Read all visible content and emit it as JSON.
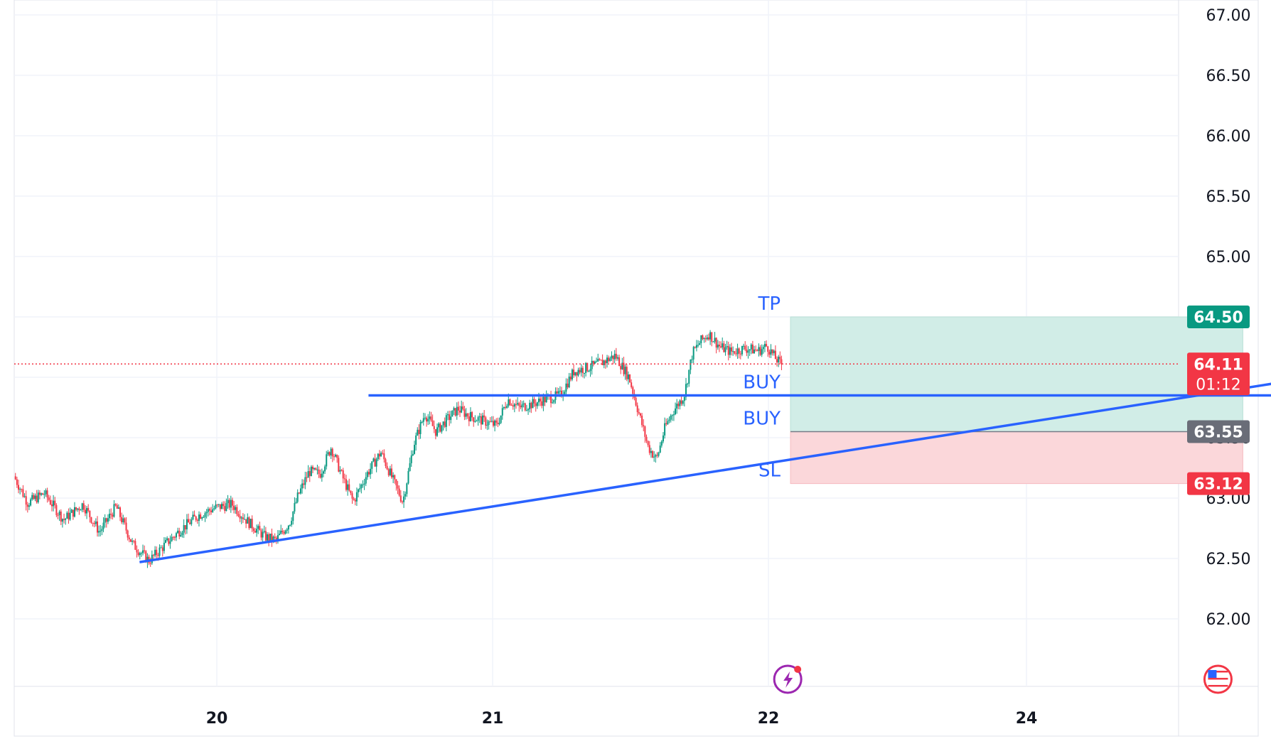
{
  "chart_data": {
    "type": "candlestick",
    "y_axis": {
      "ticks": [
        "62.00",
        "62.50",
        "63.00",
        "63.50",
        "64.00",
        "64.50",
        "65.00",
        "65.50",
        "66.00",
        "66.50",
        "67.00"
      ],
      "range": [
        61.65,
        67.3
      ]
    },
    "x_axis": {
      "ticks": [
        {
          "label": "20",
          "value": 20
        },
        {
          "label": "21",
          "value": 21
        },
        {
          "label": "22",
          "value": 22
        },
        {
          "label": "24",
          "value": 24
        }
      ],
      "range": [
        19.27,
        24.6
      ]
    },
    "price_path": [
      [
        19.27,
        63.18
      ],
      [
        19.32,
        62.96
      ],
      [
        19.38,
        63.04
      ],
      [
        19.45,
        62.82
      ],
      [
        19.52,
        62.95
      ],
      [
        19.58,
        62.72
      ],
      [
        19.64,
        62.93
      ],
      [
        19.7,
        62.62
      ],
      [
        19.76,
        62.48
      ],
      [
        19.82,
        62.62
      ],
      [
        19.88,
        62.75
      ],
      [
        19.94,
        62.86
      ],
      [
        20.0,
        62.92
      ],
      [
        20.06,
        62.95
      ],
      [
        20.12,
        62.8
      ],
      [
        20.18,
        62.68
      ],
      [
        20.22,
        62.65
      ],
      [
        20.27,
        62.8
      ],
      [
        20.3,
        63.02
      ],
      [
        20.34,
        63.22
      ],
      [
        20.38,
        63.2
      ],
      [
        20.42,
        63.42
      ],
      [
        20.46,
        63.18
      ],
      [
        20.5,
        62.97
      ],
      [
        20.55,
        63.2
      ],
      [
        20.6,
        63.38
      ],
      [
        20.65,
        63.12
      ],
      [
        20.68,
        62.97
      ],
      [
        20.72,
        63.45
      ],
      [
        20.76,
        63.7
      ],
      [
        20.8,
        63.55
      ],
      [
        20.84,
        63.65
      ],
      [
        20.88,
        63.74
      ],
      [
        20.92,
        63.68
      ],
      [
        20.97,
        63.64
      ],
      [
        21.02,
        63.6
      ],
      [
        21.06,
        63.82
      ],
      [
        21.1,
        63.75
      ],
      [
        21.15,
        63.78
      ],
      [
        21.2,
        63.82
      ],
      [
        21.25,
        63.85
      ],
      [
        21.3,
        64.05
      ],
      [
        21.35,
        64.08
      ],
      [
        21.4,
        64.12
      ],
      [
        21.45,
        64.18
      ],
      [
        21.5,
        64.0
      ],
      [
        21.53,
        63.75
      ],
      [
        21.57,
        63.42
      ],
      [
        21.6,
        63.32
      ],
      [
        21.63,
        63.58
      ],
      [
        21.66,
        63.72
      ],
      [
        21.7,
        63.85
      ],
      [
        21.73,
        64.2
      ],
      [
        21.76,
        64.3
      ],
      [
        21.79,
        64.36
      ],
      [
        21.83,
        64.25
      ],
      [
        21.87,
        64.21
      ],
      [
        21.92,
        64.24
      ],
      [
        21.97,
        64.22
      ],
      [
        22.0,
        64.26
      ],
      [
        22.03,
        64.16
      ],
      [
        22.05,
        64.11
      ]
    ],
    "current_price": "64.11",
    "countdown": "01:12",
    "annotations": [
      {
        "text": "TP",
        "price": 64.5
      },
      {
        "text": "BUY",
        "price": 63.85
      },
      {
        "text": "BUY",
        "price": 63.55
      },
      {
        "text": "SL",
        "price": 63.12
      }
    ],
    "price_badges": [
      {
        "text": "64.50",
        "price": 64.5,
        "color": "#089981"
      },
      {
        "text": "63.55",
        "price": 63.55,
        "color": "#6a6d78"
      },
      {
        "text": "63.12",
        "price": 63.12,
        "color": "#f23645"
      }
    ],
    "horizontal_line": {
      "price": 63.85,
      "from": 20.55,
      "to": 24.35,
      "color": "#2962ff"
    },
    "trend_line": {
      "from": [
        19.72,
        62.47
      ],
      "to": [
        24.28,
        64.11
      ],
      "color": "#2962ff"
    },
    "position": {
      "entry": 63.55,
      "take_profit": 64.5,
      "stop_loss": 63.12,
      "from": 22.08,
      "to": 23.72,
      "profit_color": "#d1ede7",
      "loss_color": "#fbd7da"
    },
    "colors": {
      "up": "#089981",
      "down": "#f23645",
      "grid": "#f0f3fa",
      "current_line": "#f23645"
    }
  },
  "event_icons": [
    {
      "name": "lightning-icon",
      "x": 22.07
    },
    {
      "name": "us-flag-icon",
      "x": 23.63
    }
  ]
}
